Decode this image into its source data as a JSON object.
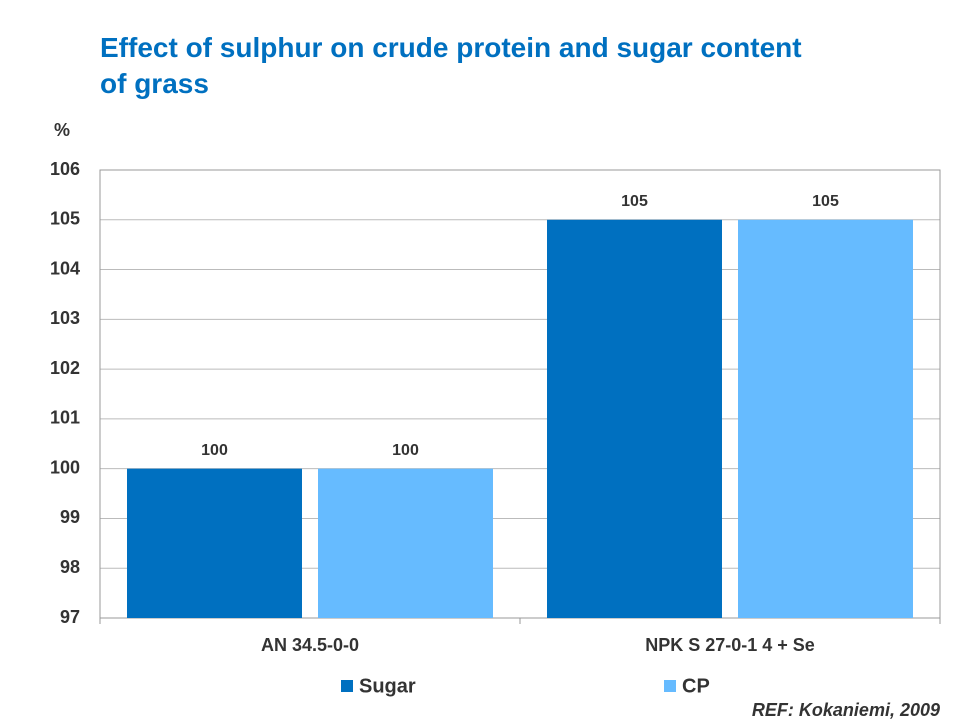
{
  "chart_data": {
    "type": "bar",
    "title": "Effect of sulphur on crude protein and sugar content of grass",
    "y_label": "%",
    "categories": [
      "AN 34.5-0-0",
      "NPK S 27-0-1 4 + Se"
    ],
    "series": [
      {
        "name": "Sugar",
        "color": "#0070c0",
        "values": [
          100,
          105
        ]
      },
      {
        "name": "CP",
        "color": "#66bbff",
        "values": [
          100,
          105
        ]
      }
    ],
    "ylim": [
      97,
      106
    ],
    "yticks": [
      97,
      98,
      99,
      100,
      101,
      102,
      103,
      104,
      105,
      106
    ],
    "grid": true,
    "legend": "bottom",
    "source": "REF: Kokaniemi, 2009"
  }
}
